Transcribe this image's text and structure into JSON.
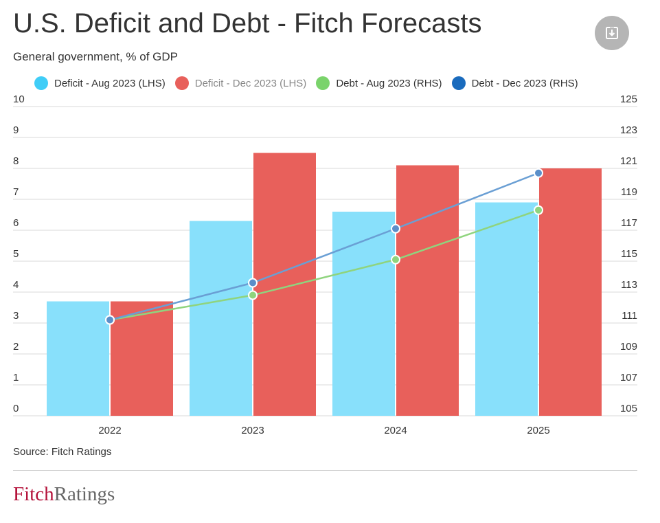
{
  "header": {
    "title": "U.S. Deficit and Debt - Fitch Forecasts",
    "subtitle": "General government, % of GDP",
    "download_icon": "download-icon"
  },
  "legend": {
    "items": [
      {
        "label": "Deficit - Aug 2023 (LHS)",
        "color": "#40cdf7"
      },
      {
        "label": "Deficit - Dec 2023 (LHS)",
        "color": "#e8605b"
      },
      {
        "label": "Debt - Aug 2023 (RHS)",
        "color": "#7ad36b"
      },
      {
        "label": "Debt - Dec 2023 (RHS)",
        "color": "#1a6bbd"
      }
    ]
  },
  "footer": {
    "source": "Source: Fitch Ratings",
    "logo_fitch": "Fitch",
    "logo_ratings": "Ratings"
  },
  "chart_data": {
    "type": "bar",
    "categories": [
      "2022",
      "2023",
      "2024",
      "2025"
    ],
    "series": [
      {
        "name": "Deficit - Aug 2023 (LHS)",
        "type": "bar",
        "axis": "left",
        "color": "#88e0fb",
        "values": [
          3.7,
          6.3,
          6.6,
          6.9
        ]
      },
      {
        "name": "Deficit - Dec 2023 (LHS)",
        "type": "bar",
        "axis": "left",
        "color": "#e8605b",
        "values": [
          3.7,
          8.5,
          8.1,
          8.0
        ]
      },
      {
        "name": "Debt - Aug 2023 (RHS)",
        "type": "line",
        "axis": "right",
        "color": "#8fd47e",
        "values": [
          111.2,
          112.8,
          115.1,
          118.3
        ]
      },
      {
        "name": "Debt - Dec 2023 (RHS)",
        "type": "line",
        "axis": "right",
        "color": "#6a9fd4",
        "values": [
          111.2,
          113.6,
          117.1,
          120.7
        ]
      }
    ],
    "y_left": {
      "range": [
        0,
        10
      ],
      "ticks": [
        "0",
        "1",
        "2",
        "3",
        "4",
        "5",
        "6",
        "7",
        "8",
        "9",
        "10"
      ]
    },
    "y_right": {
      "range": [
        105,
        125
      ],
      "ticks": [
        "105",
        "107",
        "109",
        "111",
        "113",
        "115",
        "117",
        "119",
        "121",
        "123",
        "125"
      ]
    },
    "grid": true,
    "legend_position": "top"
  }
}
